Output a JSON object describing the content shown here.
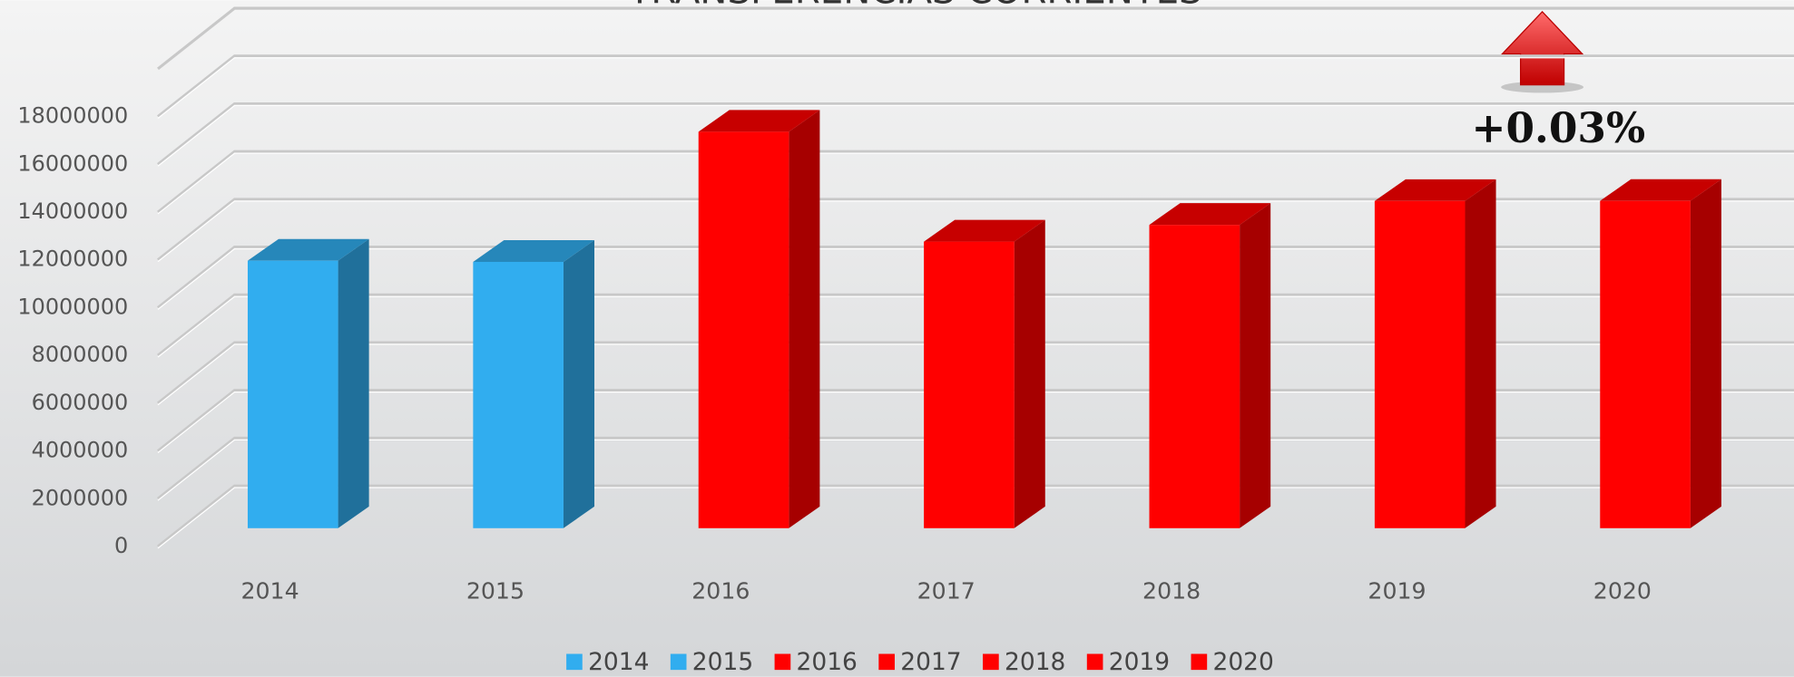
{
  "chart_data": {
    "type": "bar3d",
    "title": "TRANSFERENCIAS CORRIENTES",
    "categories": [
      "2014",
      "2015",
      "2016",
      "2017",
      "2018",
      "2019",
      "2020"
    ],
    "values": [
      11200000,
      11150000,
      16600000,
      12000000,
      12700000,
      13700000,
      13704000
    ],
    "colors": [
      "#31adef",
      "#31adef",
      "#ff0000",
      "#ff0000",
      "#ff0000",
      "#ff0000",
      "#ff0000"
    ],
    "ylim": [
      0,
      20000000
    ],
    "yticks": [
      0,
      2000000,
      4000000,
      6000000,
      8000000,
      10000000,
      12000000,
      14000000,
      16000000,
      18000000
    ],
    "grid": true,
    "legend": "bottom",
    "annotation": "+0.03%"
  }
}
